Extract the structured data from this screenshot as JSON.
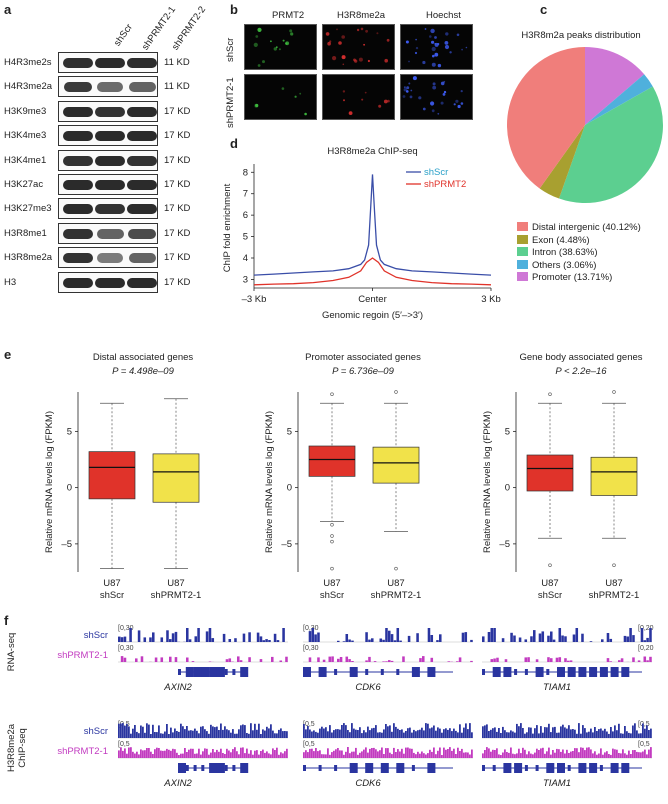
{
  "panel_labels": [
    "a",
    "b",
    "c",
    "d",
    "e",
    "f"
  ],
  "panel_a": {
    "columns": [
      "shScr",
      "shPRMT2-1",
      "shPRMT2-2"
    ],
    "rows": [
      {
        "label": "H4R3me2s",
        "size": "11 KD",
        "w": [
          0.92,
          0.95,
          0.93
        ]
      },
      {
        "label": "H4R3me2a",
        "size": "11 KD",
        "w": [
          0.85,
          0.55,
          0.6
        ]
      },
      {
        "label": "H3K9me3",
        "size": "17 KD",
        "w": [
          0.95,
          0.9,
          0.95
        ]
      },
      {
        "label": "H3K4me3",
        "size": "17 KD",
        "w": [
          0.95,
          0.95,
          0.95
        ]
      },
      {
        "label": "H3K4me1",
        "size": "17 KD",
        "w": [
          0.9,
          0.95,
          0.9
        ]
      },
      {
        "label": "H3K27ac",
        "size": "17 KD",
        "w": [
          0.95,
          0.95,
          0.95
        ]
      },
      {
        "label": "H3K27me3",
        "size": "17 KD",
        "w": [
          0.95,
          0.9,
          0.95
        ]
      },
      {
        "label": "H3R8me1",
        "size": "17 KD",
        "w": [
          0.9,
          0.6,
          0.75
        ]
      },
      {
        "label": "H3R8me2a",
        "size": "17 KD",
        "w": [
          0.9,
          0.45,
          0.6
        ]
      },
      {
        "label": "H3",
        "size": "17 KD",
        "w": [
          0.95,
          0.95,
          0.95
        ]
      }
    ]
  },
  "panel_b": {
    "columns": [
      "PRMT2",
      "H3R8me2a",
      "Hoechst"
    ],
    "rows": [
      "shScr",
      "shPRMT2-1"
    ]
  },
  "panel_c": {
    "chart_data": {
      "type": "pie",
      "title": "H3R8m2a peaks distribution",
      "labels": [
        "Distal intergenic (40.12%)",
        "Exon (4.48%)",
        "Intron (38.63%)",
        "Others (3.06%)",
        "Promoter (13.71%)"
      ],
      "values": [
        40.12,
        4.48,
        38.63,
        3.06,
        13.71
      ],
      "colors": [
        "#f07e7b",
        "#a8a030",
        "#5ccf90",
        "#4fb0dc",
        "#cf78d6"
      ]
    }
  },
  "panel_d": {
    "chart_data": {
      "type": "line",
      "title": "H3R8me2a ChIP-seq",
      "xlabel": "Genomic regoin (5′–>3′)",
      "ylabel": "ChIP fold enrichment",
      "x_ticks": [
        "–3 Kb",
        "Center",
        "3 Kb"
      ],
      "y_ticks": [
        "3",
        "4",
        "5",
        "6",
        "7",
        "8"
      ],
      "ylim": [
        2.6,
        8.2
      ],
      "x_range": [
        -3,
        3
      ],
      "series": [
        {
          "name": "shScr",
          "color": "#3a4ea8",
          "x": [
            -3,
            -2.5,
            -2,
            -1.5,
            -1,
            -0.6,
            -0.3,
            -0.2,
            -0.1,
            -0.05,
            0,
            0.05,
            0.1,
            0.2,
            0.3,
            0.6,
            1,
            1.5,
            2,
            2.5,
            3
          ],
          "y": [
            3.2,
            3.25,
            3.3,
            3.35,
            3.4,
            3.5,
            3.7,
            3.9,
            4.6,
            6.2,
            7.9,
            6.2,
            4.6,
            3.9,
            3.7,
            3.5,
            3.4,
            3.35,
            3.3,
            3.25,
            3.2
          ]
        },
        {
          "name": "shPRMT2",
          "color": "#e0332a",
          "x": [
            -3,
            -2.5,
            -2,
            -1.5,
            -1,
            -0.6,
            -0.3,
            -0.15,
            0,
            0.15,
            0.3,
            0.6,
            1,
            1.5,
            2,
            2.5,
            3
          ],
          "y": [
            2.75,
            2.78,
            2.8,
            2.85,
            2.95,
            3.1,
            3.4,
            3.8,
            4.0,
            3.8,
            3.4,
            3.1,
            2.95,
            2.85,
            2.8,
            2.78,
            2.75
          ]
        }
      ]
    }
  },
  "panel_e": {
    "chart_data": [
      {
        "type": "box",
        "title": "Distal associated genes",
        "pvalue": "P = 4.498e–09",
        "ylabel": "Relative mRNA levels log (FPKM)",
        "ylim": [
          -7.5,
          8.5
        ],
        "y_ticks": [
          "–5",
          "0",
          "5"
        ],
        "categories": [
          "U87\nshScr",
          "U87\nshPRMT2-1"
        ],
        "boxes": [
          {
            "low": -7.2,
            "q1": -1.0,
            "median": 1.8,
            "q3": 3.2,
            "high": 7.5,
            "color": "#e0332a",
            "outliers": []
          },
          {
            "low": -7.2,
            "q1": -1.3,
            "median": 1.4,
            "q3": 3.0,
            "high": 7.9,
            "color": "#f1e24a",
            "outliers": []
          }
        ]
      },
      {
        "type": "box",
        "title": "Promoter associated genes",
        "pvalue": "P = 6.736e–09",
        "ylabel": "Relative mRNA levels log (FPKM)",
        "ylim": [
          -7.5,
          8.5
        ],
        "y_ticks": [
          "–5",
          "0",
          "5"
        ],
        "categories": [
          "U87\nshScr",
          "U87\nshPRMT2-1"
        ],
        "boxes": [
          {
            "low": -3.0,
            "q1": 1.0,
            "median": 2.5,
            "q3": 3.7,
            "high": 7.5,
            "color": "#e0332a",
            "outliers": [
              -3.3,
              -4.3,
              -4.8,
              -7.2,
              8.3
            ]
          },
          {
            "low": -3.9,
            "q1": 0.4,
            "median": 2.2,
            "q3": 3.6,
            "high": 7.5,
            "color": "#f1e24a",
            "outliers": [
              -7.2,
              8.5
            ]
          }
        ]
      },
      {
        "type": "box",
        "title": "Gene body associated genes",
        "pvalue": "P < 2.2e–16",
        "ylabel": "Relative mRNA levels log (FPKM)",
        "ylim": [
          -7.5,
          8.5
        ],
        "y_ticks": [
          "–5",
          "0",
          "5"
        ],
        "categories": [
          "U87\nshScr",
          "U87\nshPRMT2-1"
        ],
        "boxes": [
          {
            "low": -4.5,
            "q1": -0.3,
            "median": 1.7,
            "q3": 2.9,
            "high": 7.5,
            "color": "#e0332a",
            "outliers": [
              -6.9,
              8.3
            ]
          },
          {
            "low": -4.5,
            "q1": -0.7,
            "median": 1.4,
            "q3": 2.7,
            "high": 7.5,
            "color": "#f1e24a",
            "outliers": [
              -6.9,
              8.5
            ]
          }
        ]
      }
    ]
  },
  "panel_f": {
    "groups": [
      {
        "label": "RNA-seq",
        "tracks": [
          {
            "name": "shScr",
            "color": "#2a35a0"
          },
          {
            "name": "shPRMT2-1",
            "color": "#c23bc0"
          }
        ],
        "scales": [
          "0_30",
          "0_30",
          "0_20"
        ],
        "genes": [
          "AXIN2",
          "CDK6",
          "TIAM1"
        ]
      },
      {
        "label": "H3R8me2a\nChIP-seq",
        "tracks": [
          {
            "name": "shScr",
            "color": "#2a35a0"
          },
          {
            "name": "shPRMT2-1",
            "color": "#c23bc0"
          }
        ],
        "scales": [
          "0_5",
          "0_5",
          "0_5"
        ],
        "genes": [
          "AXIN2",
          "CDK6",
          "TIAM1"
        ]
      }
    ]
  }
}
